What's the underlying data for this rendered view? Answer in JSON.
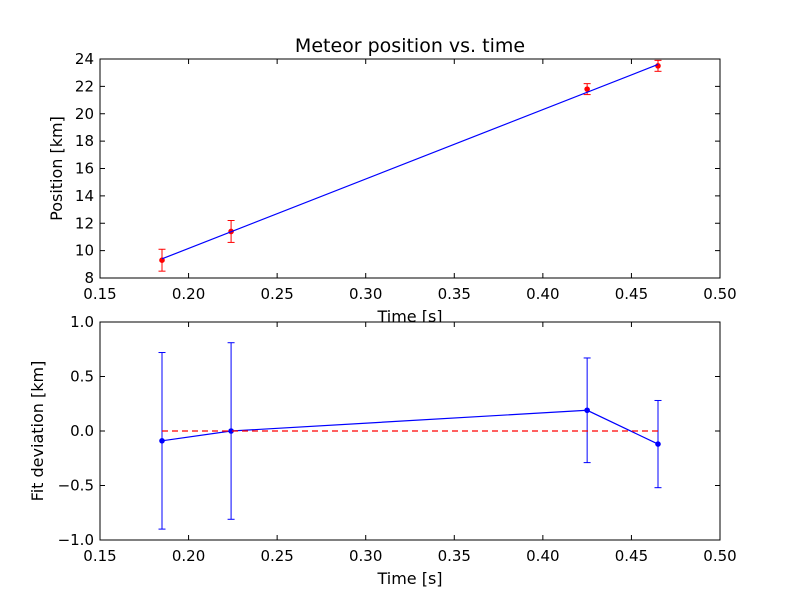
{
  "chart_data": [
    {
      "type": "line",
      "title": "Meteor position vs. time",
      "xlabel": "Time [s]",
      "ylabel": "Position [km]",
      "xlim": [
        0.15,
        0.5
      ],
      "ylim": [
        8,
        24
      ],
      "xticks": [
        "0.15",
        "0.20",
        "0.25",
        "0.30",
        "0.35",
        "0.40",
        "0.45",
        "0.50"
      ],
      "yticks": [
        "8",
        "10",
        "12",
        "14",
        "16",
        "18",
        "20",
        "22",
        "24"
      ],
      "grid": false,
      "series": [
        {
          "kind": "errorbar-scatter",
          "color": "#ff0000",
          "x": [
            0.185,
            0.224,
            0.425,
            0.465
          ],
          "y": [
            9.3,
            11.4,
            21.8,
            23.5
          ],
          "yerr": [
            0.8,
            0.8,
            0.4,
            0.4
          ]
        },
        {
          "kind": "fit-line",
          "color": "#0000ff",
          "x": [
            0.185,
            0.465
          ],
          "y": [
            9.4,
            23.6
          ]
        }
      ]
    },
    {
      "type": "line",
      "title": "",
      "xlabel": "Time [s]",
      "ylabel": "Fit deviation [km]",
      "xlim": [
        0.15,
        0.5
      ],
      "ylim": [
        -1.0,
        1.0
      ],
      "xticks": [
        "0.15",
        "0.20",
        "0.25",
        "0.30",
        "0.35",
        "0.40",
        "0.45",
        "0.50"
      ],
      "yticks": [
        "−1.0",
        "−0.5",
        "0.0",
        "0.5",
        "1.0"
      ],
      "grid": false,
      "series": [
        {
          "kind": "errorbar-line",
          "color": "#0000ff",
          "x": [
            0.185,
            0.224,
            0.425,
            0.465
          ],
          "y": [
            -0.09,
            0.0,
            0.19,
            -0.12
          ],
          "yerr": [
            0.81,
            0.81,
            0.48,
            0.4
          ]
        },
        {
          "kind": "reference-line",
          "color": "#ff0000",
          "x": [
            0.185,
            0.465
          ],
          "y": [
            0.0,
            0.0
          ]
        }
      ]
    }
  ]
}
